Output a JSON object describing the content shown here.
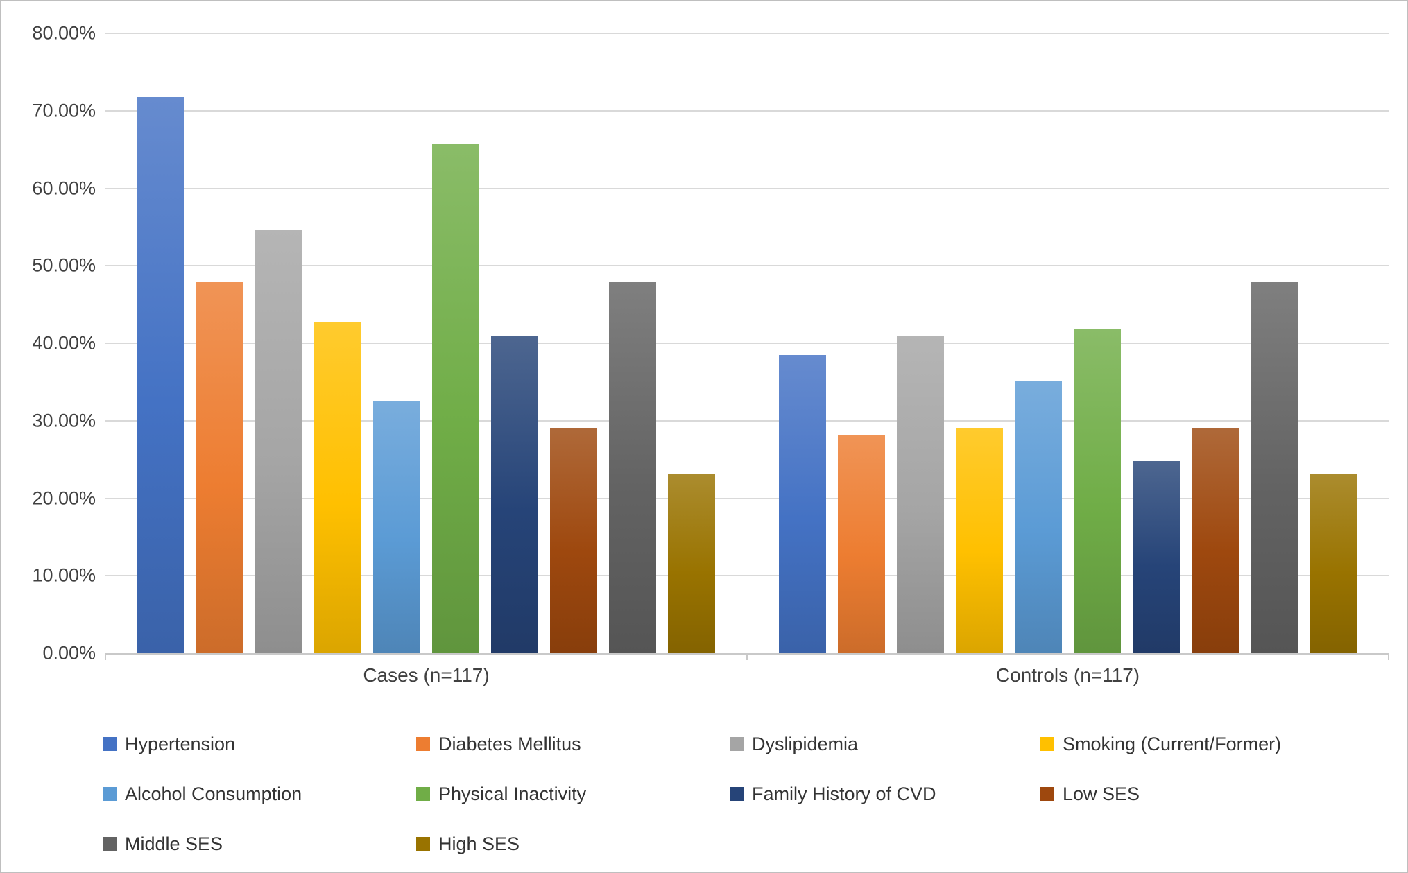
{
  "chart_data": {
    "type": "bar",
    "title": "",
    "xlabel": "",
    "ylabel": "",
    "categories": [
      "Cases (n=117)",
      "Controls (n=117)"
    ],
    "series": [
      {
        "name": "Hypertension",
        "color": "#4472C4",
        "values": [
          71.79,
          38.46
        ]
      },
      {
        "name": "Diabetes Mellitus",
        "color": "#ED7D31",
        "values": [
          47.86,
          28.21
        ]
      },
      {
        "name": "Dyslipidemia",
        "color": "#A5A5A5",
        "values": [
          54.7,
          41.03
        ]
      },
      {
        "name": "Smoking (Current/Former)",
        "color": "#FFC000",
        "values": [
          42.74,
          29.06
        ]
      },
      {
        "name": "Alcohol Consumption",
        "color": "#5B9BD5",
        "values": [
          32.48,
          35.04
        ]
      },
      {
        "name": "Physical Inactivity",
        "color": "#70AD47",
        "values": [
          65.81,
          41.88
        ]
      },
      {
        "name": "Family History of CVD",
        "color": "#264478",
        "values": [
          41.03,
          24.79
        ]
      },
      {
        "name": "Low SES",
        "color": "#9E480E",
        "values": [
          29.06,
          29.06
        ]
      },
      {
        "name": "Middle SES",
        "color": "#636363",
        "values": [
          47.86,
          47.86
        ]
      },
      {
        "name": "High SES",
        "color": "#997300",
        "values": [
          23.08,
          23.08
        ]
      }
    ],
    "ylim": [
      0,
      80
    ],
    "ytick_step": 10,
    "ytick_labels": [
      "0.00%",
      "10.00%",
      "20.00%",
      "30.00%",
      "40.00%",
      "50.00%",
      "60.00%",
      "70.00%",
      "80.00%"
    ],
    "grid": true,
    "legend_position": "bottom",
    "colors": {
      "gridline": "#D9D9D9",
      "axis_line": "#C9C9C9",
      "text": "#404040",
      "background": "#FFFFFF",
      "border": "#BFBFBF"
    }
  }
}
